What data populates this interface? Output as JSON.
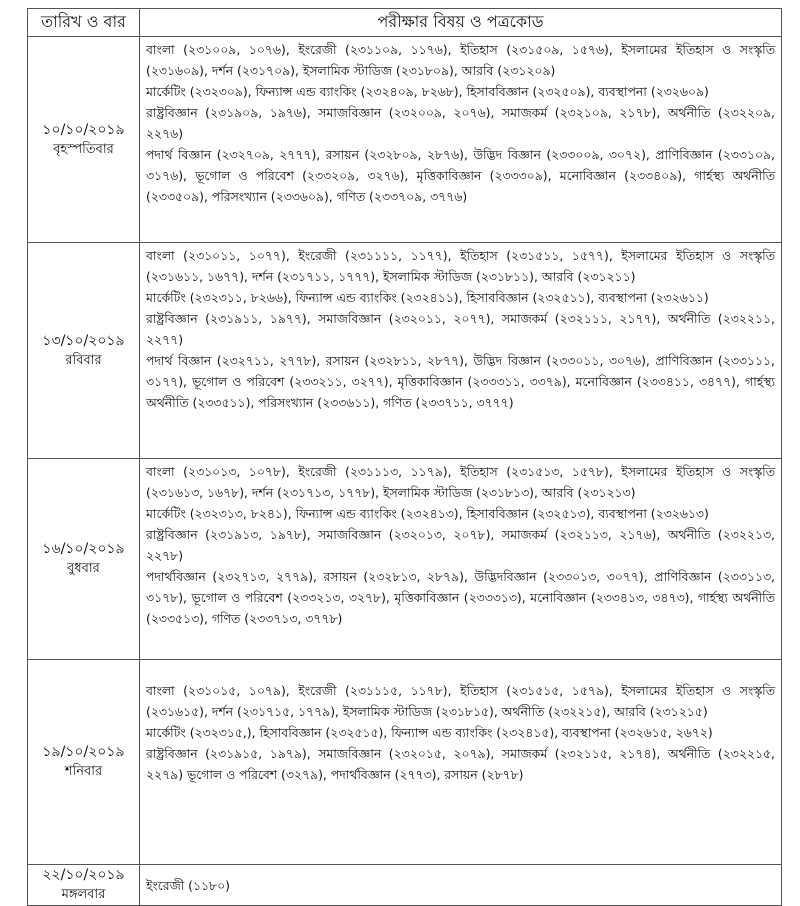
{
  "header": {
    "date_col": "তারিখ ও বার",
    "subject_col": "পরীক্ষার বিষয় ও পত্রকোড"
  },
  "rows": [
    {
      "date": "১০/১০/২০১৯",
      "day": "বৃহস্পতিবার",
      "groups": [
        "বাংলা (২৩১০০৯, ১০৭৬), ইংরেজী (২৩১১০৯, ১১৭৬), ইতিহাস (২৩১৫০৯, ১৫৭৬), ইসলামের ইতিহাস ও সংস্কৃতি (২৩১৬০৯), দর্শন (২৩১৭০৯), ইসলামিক স্টাডিজ (২৩১৮০৯), আরবি (২৩১২০৯)",
        "মার্কেটিং (২৩২৩০৯), ফিন্যান্স এন্ড ব্যাংকিং (২৩২৪০৯, ৮২৬৮), হিসাববিজ্ঞান (২৩২৫০৯), ব্যবস্থাপনা (২৩২৬০৯)",
        "রাষ্ট্রবিজ্ঞান (২৩১৯০৯, ১৯৭৬), সমাজবিজ্ঞান (২৩২০০৯, ২০৭৬), সমাজকর্ম (২৩২১০৯, ২১৭৮), অর্থনীতি (২৩২২০৯, ২২৭৬)",
        "পদার্থ বিজ্ঞান (২৩২৭০৯, ২৭৭৭), রসায়ন (২৩২৮০৯, ২৮৭৬), উদ্ভিদ বিজ্ঞান (২৩৩০০৯, ৩০৭২), প্রাণিবিজ্ঞান (২৩৩১০৯, ৩১৭৬), ভূগোল ও পরিবেশ (২৩৩২০৯, ৩২৭৬), মৃত্তিকাবিজ্ঞান (২৩৩৩০৯), মনোবিজ্ঞান (২৩৩৪০৯), গার্হস্থ্য অর্থনীতি (২৩৩৫০৯), পরিসংখ্যান (২৩৩৬০৯), গণিত (২৩৩৭০৯, ৩৭৭৬)"
      ]
    },
    {
      "date": "১৩/১০/২০১৯",
      "day": "রবিবার",
      "groups": [
        "বাংলা (২৩১০১১, ১০৭৭), ইংরেজী (২৩১১১১, ১১৭৭), ইতিহাস (২৩১৫১১, ১৫৭৭), ইসলামের ইতিহাস ও সংস্কৃতি (২৩১৬১১, ১৬৭৭), দর্শন (২৩১৭১১, ১৭৭৭), ইসলামিক স্টাডিজ (২৩১৮১১), আরবি (২৩১২১১)",
        "মার্কেটিং (২৩২৩১১, ৮২৬৬), ফিন্যান্স এন্ড ব্যাংকিং (২৩২৪১১), হিসাববিজ্ঞান (২৩২৫১১), ব্যবস্থাপনা (২৩২৬১১)",
        "রাষ্ট্রবিজ্ঞান (২৩১৯১১, ১৯৭৭), সমাজবিজ্ঞান (২৩২০১১, ২০৭৭), সমাজকর্ম (২৩২১১১, ২১৭৭), অর্থনীতি (২৩২২১১, ২২৭৭)",
        "পদার্থ বিজ্ঞান (২৩২৭১১, ২৭৭৮), রসায়ন (২৩২৮১১, ২৮৭৭), উদ্ভিদ বিজ্ঞান (২৩৩০১১, ৩০৭৬), প্রাণিবিজ্ঞান (২৩৩১১১, ৩১৭৭), ভূগোল ও পরিবেশ (২৩৩২১১, ৩২৭৭), মৃত্তিকাবিজ্ঞান (২৩৩৩১১, ৩৩৭৯), মনোবিজ্ঞান (২৩৩৪১১, ৩৪৭৭), গার্হস্থ্য অর্থনীতি (২৩৩৫১১), পরিসংখ্যান (২৩৩৬১১), গণিত (২৩৩৭১১, ৩৭৭৭)"
      ]
    },
    {
      "date": "১৬/১০/২০১৯",
      "day": "বুধবার",
      "groups": [
        "বাংলা (২৩১০১৩, ১০৭৮), ইংরেজী (২৩১১১৩, ১১৭৯), ইতিহাস (২৩১৫১৩, ১৫৭৮), ইসলামের ইতিহাস ও সংস্কৃতি (২৩১৬১৩, ১৬৭৮), দর্শন (২৩১৭১৩, ১৭৭৮), ইসলামিক স্টাডিজ (২৩১৮১৩), আরবি (২৩১২১৩)",
        "মার্কেটিং (২৩২৩১৩, ৮২৪১), ফিন্যান্স এন্ড ব্যাংকিং (২৩২৪১৩), হিসাববিজ্ঞান (২৩২৫১৩), ব্যবস্থাপনা (২৩২৬১৩)",
        "রাষ্ট্রবিজ্ঞান (২৩১৯১৩, ১৯৭৮), সমাজবিজ্ঞান (২৩২০১৩, ২০৭৮), সমাজকর্ম (২৩২১১৩, ২১৭৬), অর্থনীতি (২৩২২১৩, ২২৭৮)",
        "পদার্থবিজ্ঞান (২৩২৭১৩, ২৭৭৯), রসায়ন (২৩২৮১৩, ২৮৭৯), উদ্ভিদবিজ্ঞান (২৩৩০১৩, ৩০৭৭), প্রাণিবিজ্ঞান (২৩৩১১৩, ৩১৭৮), ভূগোল ও পরিবেশ (২৩৩২১৩, ৩২৭৮), মৃত্তিকাবিজ্ঞান (২৩৩৩১৩), মনোবিজ্ঞান (২৩৩৪১৩, ৩৪৭৩), গার্হস্থ্য অর্থনীতি (২৩৩৫১৩), গণিত (২৩৩৭১৩, ৩৭৭৮)"
      ]
    },
    {
      "date": "১৯/১০/২০১৯",
      "day": "শনিবার",
      "groups": [
        "বাংলা (২৩১০১৫, ১০৭৯), ইংরেজী (২৩১১১৫, ১১৭৮), ইতিহাস (২৩১৫১৫, ১৫৭৯), ইসলামের ইতিহাস ও সংস্কৃতি (২৩১৬১৫), দর্শন (২৩১৭১৫, ১৭৭৯), ইসলামিক স্টাডিজ (২৩১৮১৫), অর্থনীতি (২৩২২১৫), আরবি (২৩১২১৫)",
        "মার্কেটিং (২৩২৩১৫,), হিসাববিজ্ঞান (২৩২৫১৫), ফিন্যান্স এন্ড ব্যাংকিং (২৩২৪১৫), ব্যবস্থাপনা (২৩২৬১৫, ২৬৭২)",
        "রাষ্ট্রবিজ্ঞান (২৩১৯১৫, ১৯৭৯), সমাজবিজ্ঞান (২৩২০১৫, ২০৭৯), সমাজকর্ম (২৩২১১৫, ২১৭৪), অর্থনীতি (২৩২২১৫, ২২৭৯) ভূগোল ও পরিবেশ (৩২৭৯), পদার্থবিজ্ঞান (২৭৭৩), রসায়ন (২৮৭৮)"
      ]
    },
    {
      "date": "২২/১০/২০১৯",
      "day": "মঙ্গলবার",
      "groups": [
        "ইংরেজী (১১৮০)"
      ]
    }
  ]
}
